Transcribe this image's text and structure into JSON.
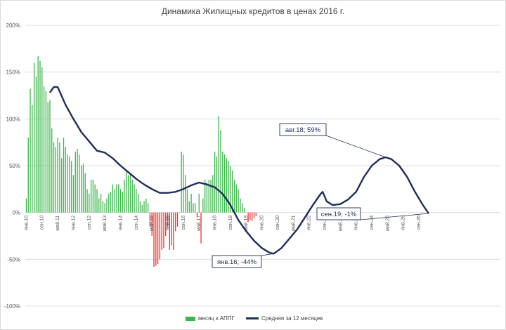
{
  "chart_data": {
    "type": "bar",
    "title": "Динамика Жилищных кредитов в ценах 2016 г.",
    "ylim": [
      -100,
      200
    ],
    "yticks": [
      "200%",
      "150%",
      "100%",
      "50%",
      "0%",
      "-50%",
      "-100%"
    ],
    "grid": true,
    "legend_position": "bottom",
    "colors": {
      "positive": "#3cb64a",
      "negative": "#e8312f",
      "line": "#1f2d5a"
    },
    "x_labels": [
      "янв.10",
      "сен.10",
      "май.11",
      "янв.12",
      "сен.12",
      "май.13",
      "янв.14",
      "сен.14",
      "май.15",
      "янв.16",
      "сен.16",
      "май.17",
      "янв.18",
      "сен.18",
      "май.19",
      "янв.20",
      "сен.20",
      "май.21",
      "янв.22",
      "сен.22",
      "май.23",
      "янв.24",
      "сен.24",
      "май.25",
      "янв.26",
      "сен.26"
    ],
    "monthly_growth": [
      15,
      80,
      132,
      115,
      160,
      145,
      167,
      162,
      155,
      135,
      130,
      118,
      120,
      90,
      75,
      70,
      80,
      75,
      58,
      80,
      70,
      62,
      60,
      55,
      40,
      65,
      68,
      62,
      50,
      52,
      42,
      25,
      20,
      35,
      35,
      30,
      25,
      15,
      20,
      12,
      10,
      15,
      20,
      22,
      30,
      25,
      30,
      30,
      25,
      22,
      35,
      45,
      40,
      42,
      35,
      30,
      25,
      20,
      12,
      8,
      12,
      15,
      10,
      -15,
      -25,
      -58,
      -57,
      -55,
      -50,
      -40,
      -38,
      -25,
      -15,
      -40,
      -35,
      -40,
      -20,
      -15,
      0,
      65,
      62,
      40,
      25,
      12,
      20,
      10,
      10,
      -5,
      20,
      -33,
      15,
      35,
      32,
      35,
      35,
      40,
      65,
      60,
      103,
      88,
      65,
      62,
      58,
      55,
      50,
      45,
      35,
      30,
      25,
      15,
      10,
      5,
      0,
      -10,
      -8,
      -9,
      -6,
      -4
    ],
    "series": [
      {
        "name": "месяц к АППГ",
        "type": "bar"
      },
      {
        "name": "Средняя за 12 месяцев",
        "type": "line",
        "points": [
          [
            12,
            128
          ],
          [
            14,
            134
          ],
          [
            16,
            134
          ],
          [
            20,
            115
          ],
          [
            24,
            100
          ],
          [
            28,
            86
          ],
          [
            32,
            76
          ],
          [
            36,
            66
          ],
          [
            40,
            64
          ],
          [
            44,
            58
          ],
          [
            48,
            50
          ],
          [
            52,
            43
          ],
          [
            56,
            36
          ],
          [
            60,
            30
          ],
          [
            64,
            25
          ],
          [
            68,
            21
          ],
          [
            72,
            21
          ],
          [
            76,
            22
          ],
          [
            80,
            25
          ],
          [
            84,
            29
          ],
          [
            88,
            32
          ],
          [
            92,
            30
          ],
          [
            96,
            27
          ],
          [
            100,
            20
          ],
          [
            104,
            8
          ],
          [
            108,
            -8
          ],
          [
            112,
            -20
          ],
          [
            116,
            -30
          ],
          [
            120,
            -38
          ],
          [
            124,
            -43
          ],
          [
            126,
            -44
          ],
          [
            130,
            -38
          ],
          [
            134,
            -28
          ],
          [
            138,
            -18
          ],
          [
            142,
            -5
          ],
          [
            146,
            8
          ],
          [
            150,
            20
          ],
          [
            151,
            22
          ],
          [
            153,
            12
          ],
          [
            156,
            8
          ],
          [
            160,
            9
          ],
          [
            164,
            14
          ],
          [
            168,
            22
          ],
          [
            172,
            38
          ],
          [
            176,
            50
          ],
          [
            180,
            57
          ],
          [
            183,
            59
          ],
          [
            186,
            57
          ],
          [
            190,
            50
          ],
          [
            194,
            38
          ],
          [
            198,
            22
          ],
          [
            202,
            8
          ],
          [
            205,
            -1
          ]
        ]
      }
    ],
    "annotations": [
      {
        "text": "авг.18; 59%"
      },
      {
        "text": "янв.16; -44%"
      },
      {
        "text": "сен.19; -1%"
      }
    ]
  }
}
